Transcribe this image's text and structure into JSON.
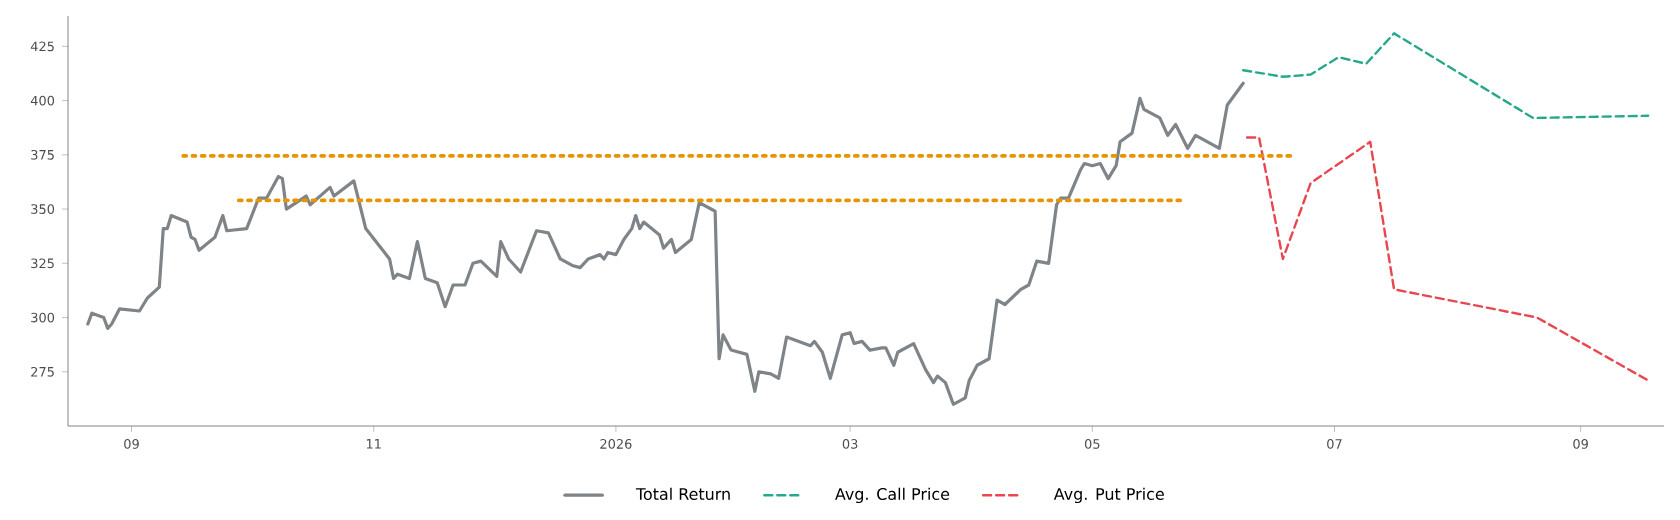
{
  "chart_data": {
    "type": "line",
    "xlim": [
      "2025-08-16",
      "2026-09-22"
    ],
    "ylim": [
      250,
      439
    ],
    "yticks": [
      275,
      300,
      325,
      350,
      375,
      400,
      425
    ],
    "xticks": [
      {
        "value": "2025-09-01",
        "label": "09"
      },
      {
        "value": "2025-11-01",
        "label": "11"
      },
      {
        "value": "2026-01-01",
        "label": "2026"
      },
      {
        "value": "2026-03-01",
        "label": "03"
      },
      {
        "value": "2026-05-01",
        "label": "05"
      },
      {
        "value": "2026-07-01",
        "label": "07"
      },
      {
        "value": "2026-09-01",
        "label": "09"
      }
    ],
    "legend": "bottom",
    "series": [
      {
        "name": "Total Return",
        "color": "#7f8489",
        "line_style": "solid",
        "x": [
          "2025-08-21",
          "2025-08-22",
          "2025-08-25",
          "2025-08-26",
          "2025-08-27",
          "2025-08-29",
          "2025-09-03",
          "2025-09-05",
          "2025-09-08",
          "2025-09-09",
          "2025-09-10",
          "2025-09-11",
          "2025-09-15",
          "2025-09-16",
          "2025-09-17",
          "2025-09-18",
          "2025-09-22",
          "2025-09-24",
          "2025-09-25",
          "2025-09-30",
          "2025-10-03",
          "2025-10-05",
          "2025-10-08",
          "2025-10-09",
          "2025-10-10",
          "2025-10-15",
          "2025-10-16",
          "2025-10-21",
          "2025-10-22",
          "2025-10-27",
          "2025-10-30",
          "2025-11-05",
          "2025-11-06",
          "2025-11-07",
          "2025-11-10",
          "2025-11-12",
          "2025-11-14",
          "2025-11-17",
          "2025-11-19",
          "2025-11-21",
          "2025-11-24",
          "2025-11-26",
          "2025-11-28",
          "2025-12-02",
          "2025-12-03",
          "2025-12-05",
          "2025-12-08",
          "2025-12-12",
          "2025-12-15",
          "2025-12-18",
          "2025-12-21",
          "2025-12-23",
          "2025-12-25",
          "2025-12-28",
          "2025-12-29",
          "2025-12-30",
          "2026-01-01",
          "2026-01-03",
          "2026-01-05",
          "2026-01-06",
          "2026-01-07",
          "2026-01-08",
          "2026-01-12",
          "2026-01-13",
          "2026-01-15",
          "2026-01-16",
          "2026-01-20",
          "2026-01-22",
          "2026-01-26",
          "2026-01-27",
          "2026-01-28",
          "2026-01-30",
          "2026-02-03",
          "2026-02-05",
          "2026-02-06",
          "2026-02-09",
          "2026-02-11",
          "2026-02-13",
          "2026-02-19",
          "2026-02-20",
          "2026-02-22",
          "2026-02-24",
          "2026-02-27",
          "2026-03-01",
          "2026-03-02",
          "2026-03-04",
          "2026-03-06",
          "2026-03-09",
          "2026-03-10",
          "2026-03-12",
          "2026-03-13",
          "2026-03-17",
          "2026-03-20",
          "2026-03-22",
          "2026-03-23",
          "2026-03-25",
          "2026-03-27",
          "2026-03-30",
          "2026-03-31",
          "2026-04-02",
          "2026-04-05",
          "2026-04-07",
          "2026-04-09",
          "2026-04-13",
          "2026-04-15",
          "2026-04-17",
          "2026-04-20",
          "2026-04-22",
          "2026-04-23",
          "2026-04-25",
          "2026-04-28",
          "2026-04-29",
          "2026-05-01",
          "2026-05-03",
          "2026-05-05",
          "2026-05-07",
          "2026-05-08",
          "2026-05-11",
          "2026-05-13",
          "2026-05-14",
          "2026-05-18",
          "2026-05-20",
          "2026-05-22",
          "2026-05-25",
          "2026-05-27",
          "2026-05-29",
          "2026-05-30",
          "2026-06-02",
          "2026-06-04",
          "2026-06-08"
        ],
        "values": [
          297,
          302,
          300,
          295,
          297,
          304,
          303,
          309,
          314,
          341,
          341,
          347,
          344,
          337,
          336,
          331,
          337,
          347,
          340,
          341,
          355,
          355,
          365,
          364,
          350,
          356,
          352,
          360,
          356,
          363,
          341,
          327,
          318,
          320,
          318,
          335,
          318,
          316,
          305,
          315,
          315,
          325,
          326,
          319,
          335,
          327,
          321,
          340,
          339,
          327,
          324,
          323,
          327,
          329,
          327,
          330,
          329,
          336,
          341,
          347,
          341,
          344,
          338,
          332,
          336,
          330,
          336,
          353,
          349,
          281,
          292,
          285,
          283,
          266,
          275,
          274,
          272,
          291,
          287,
          289,
          284,
          272,
          292,
          293,
          288,
          289,
          285,
          286,
          286,
          278,
          284,
          288,
          276,
          270,
          273,
          270,
          260,
          263,
          271,
          278,
          281,
          308,
          306,
          313,
          315,
          326,
          325,
          352,
          355,
          355,
          368,
          371,
          370,
          371,
          364,
          370,
          381,
          385,
          401,
          396,
          392,
          384,
          389,
          378,
          384,
          382,
          381,
          378,
          398,
          408
        ]
      },
      {
        "name": "Avg. Call Price",
        "color": "#26a98b",
        "line_style": "dashed",
        "x": [
          "2026-06-08",
          "2026-06-18",
          "2026-06-25",
          "2026-07-02",
          "2026-07-09",
          "2026-07-16",
          "2026-08-20",
          "2026-09-18"
        ],
        "values": [
          414,
          411,
          412,
          420,
          417,
          431,
          392,
          393
        ]
      },
      {
        "name": "Avg. Put Price",
        "color": "#e8474f",
        "line_style": "dashed",
        "x": [
          "2026-06-09",
          "2026-06-12",
          "2026-06-18",
          "2026-06-25",
          "2026-07-10",
          "2026-07-16",
          "2026-08-21",
          "2026-09-18"
        ],
        "values": [
          383,
          383,
          327,
          362,
          381,
          313,
          300,
          271
        ]
      },
      {
        "color": "#e69500",
        "line_style": "dotted",
        "x": [
          "2025-09-14",
          "2026-06-20"
        ],
        "values": [
          374.5,
          374.5
        ]
      },
      {
        "color": "#e69500",
        "line_style": "dotted",
        "x": [
          "2025-09-28",
          "2026-05-24"
        ],
        "values": [
          354,
          354
        ]
      }
    ]
  }
}
